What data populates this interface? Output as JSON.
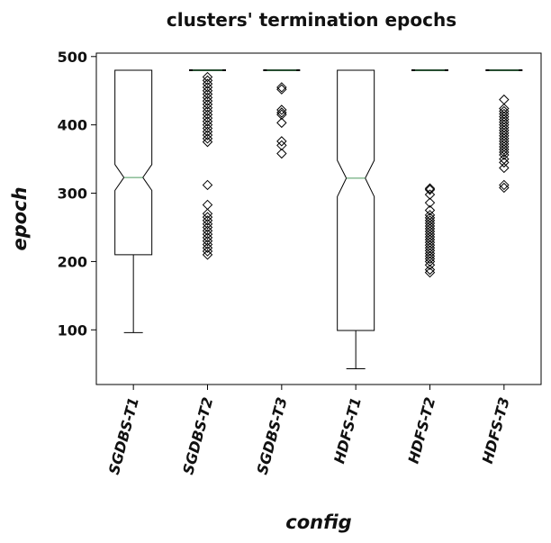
{
  "chart_data": {
    "type": "boxplot",
    "title": "clusters' termination epochs",
    "xlabel": "config",
    "ylabel": "epoch",
    "categories": [
      "SGDBS-T1",
      "SGDBS-T2",
      "SGDBS-T3",
      "HDFS-T1",
      "HDFS-T2",
      "HDFS-T3"
    ],
    "ylim": [
      20,
      505
    ],
    "yticks": [
      100,
      200,
      300,
      400,
      500
    ],
    "notched": true,
    "grid": false,
    "boxes": [
      {
        "name": "SGDBS-T1",
        "whislo": 96,
        "q1": 210,
        "med": 323,
        "q3": 480,
        "whishi": 480,
        "notch_lo": 304,
        "notch_hi": 342,
        "fliers": []
      },
      {
        "name": "SGDBS-T2",
        "whislo": 480,
        "q1": 480,
        "med": 480,
        "q3": 480,
        "whishi": 480,
        "notch_lo": 480,
        "notch_hi": 480,
        "fliers": [
          470,
          465,
          460,
          455,
          450,
          445,
          440,
          435,
          430,
          425,
          420,
          415,
          410,
          405,
          400,
          395,
          390,
          385,
          380,
          375,
          312,
          283,
          270,
          265,
          260,
          255,
          250,
          245,
          240,
          235,
          230,
          225,
          220,
          215,
          210
        ]
      },
      {
        "name": "SGDBS-T3",
        "whislo": 480,
        "q1": 480,
        "med": 480,
        "q3": 480,
        "whishi": 480,
        "notch_lo": 480,
        "notch_hi": 480,
        "fliers": [
          455,
          452,
          422,
          418,
          415,
          403,
          376,
          370,
          358
        ]
      },
      {
        "name": "HDFS-T1",
        "whislo": 43,
        "q1": 99,
        "med": 322,
        "q3": 480,
        "whishi": 480,
        "notch_lo": 295,
        "notch_hi": 348,
        "fliers": []
      },
      {
        "name": "HDFS-T2",
        "whislo": 480,
        "q1": 480,
        "med": 480,
        "q3": 480,
        "whishi": 480,
        "notch_lo": 480,
        "notch_hi": 480,
        "fliers": [
          307,
          305,
          298,
          286,
          275,
          268,
          264,
          260,
          256,
          252,
          248,
          244,
          240,
          236,
          232,
          228,
          224,
          220,
          216,
          212,
          208,
          204,
          200,
          195,
          188,
          184
        ]
      },
      {
        "name": "HDFS-T3",
        "whislo": 480,
        "q1": 480,
        "med": 480,
        "q3": 480,
        "whishi": 480,
        "notch_lo": 480,
        "notch_hi": 480,
        "fliers": [
          437,
          424,
          420,
          416,
          412,
          408,
          404,
          400,
          396,
          392,
          388,
          384,
          380,
          376,
          372,
          368,
          364,
          360,
          356,
          350,
          345,
          337,
          312,
          308
        ]
      }
    ],
    "colors": {
      "box": "#000000",
      "median": "#4c9a5f",
      "flier": "#000000"
    }
  }
}
